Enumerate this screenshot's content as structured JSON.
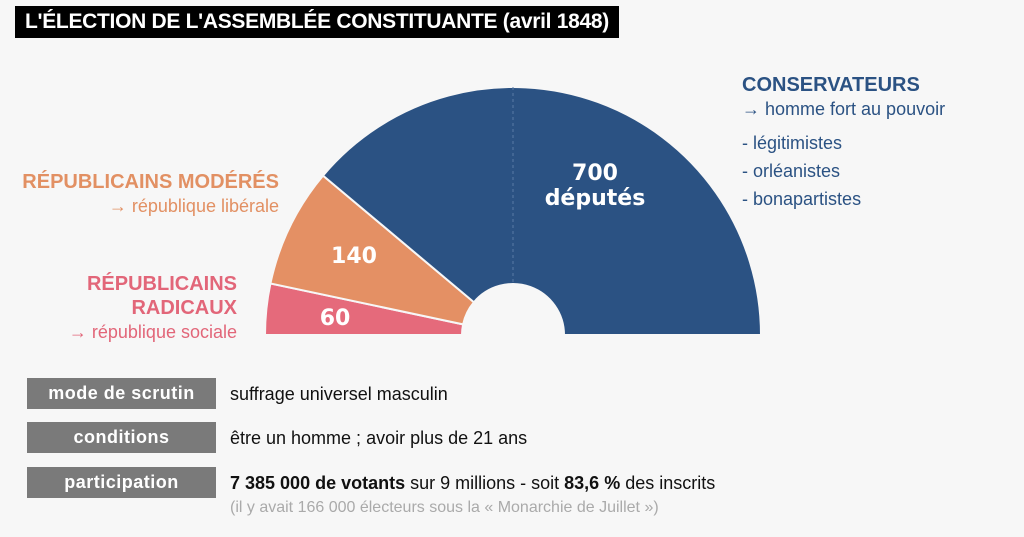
{
  "title": "L'ÉLECTION DE L'ASSEMBLÉE CONSTITUANTE (avril 1848)",
  "chart_data": {
    "type": "pie",
    "subtype": "half-donut (parliament)",
    "title": "L'ÉLECTION DE L'ASSEMBLÉE CONSTITUANTE (avril 1848)",
    "total_seats": 900,
    "order": "left-to-right",
    "slices": [
      {
        "name": "RÉPUBLICAINS RADICAUX",
        "value": 60,
        "label": "60",
        "color": "#e56a7b"
      },
      {
        "name": "RÉPUBLICAINS MODÉRÉS",
        "value": 140,
        "label": "140",
        "color": "#e49064"
      },
      {
        "name": "CONSERVATEURS",
        "value": 700,
        "label": "700",
        "label_sub": "députés",
        "color": "#2b5283"
      }
    ],
    "midline": "dashed vertical line at center"
  },
  "legend": {
    "moderes": {
      "title": "RÉPUBLICAINS MODÉRÉS",
      "subtitle": "→ république libérale"
    },
    "radicaux": {
      "title_line1": "RÉPUBLICAINS",
      "title_line2": "RADICAUX",
      "subtitle": "→ république sociale"
    },
    "conservateurs": {
      "title": "CONSERVATEURS",
      "subtitle": "→ homme fort au pouvoir",
      "items": [
        "- légitimistes",
        "- orléanistes",
        "- bonapartistes"
      ]
    }
  },
  "info": {
    "rows": [
      {
        "label": "mode de scrutin",
        "value": "suffrage universel masculin"
      },
      {
        "label": "conditions",
        "value": "être un homme ; avoir plus de 21 ans"
      },
      {
        "label": "participation",
        "value_bold1": "7 385 000 de votants",
        "value_mid": " sur 9 millions - soit ",
        "value_bold2": "83,6 %",
        "value_end": " des inscrits"
      }
    ],
    "note": "(il y avait 166 000 électeurs sous la « Monarchie de Juillet »)"
  }
}
